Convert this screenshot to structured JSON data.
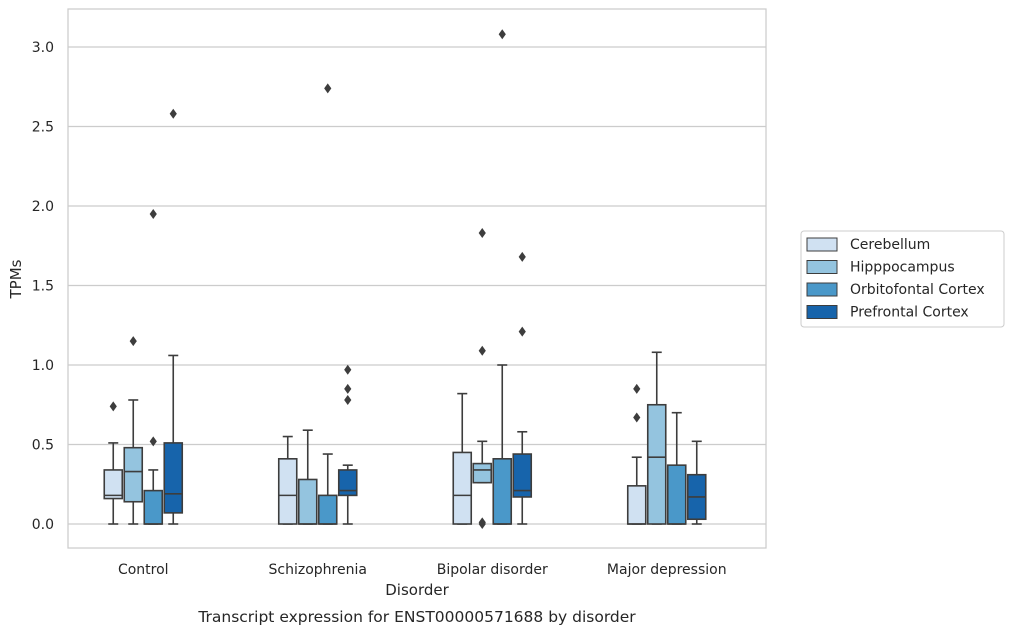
{
  "chart_data": {
    "type": "box",
    "xlabel": "Disorder",
    "ylabel": "TPMs",
    "caption": "Transcript expression for ENST00000571688 by disorder",
    "ylim": [
      -0.15,
      3.24
    ],
    "yticks": [
      0.0,
      0.5,
      1.0,
      1.5,
      2.0,
      2.5,
      3.0
    ],
    "ytick_labels": [
      "0.0",
      "0.5",
      "1.0",
      "1.5",
      "2.0",
      "2.5",
      "3.0"
    ],
    "grid": "horizontal",
    "legend_position": "right",
    "categories": [
      "Control",
      "Schizophrenia",
      "Bipolar disorder",
      "Major depression"
    ],
    "series": [
      {
        "name": "Cerebellum",
        "color": "#d0e1f2",
        "boxes": [
          {
            "whisker_low": 0.0,
            "q1": 0.16,
            "median": 0.18,
            "q3": 0.34,
            "whisker_high": 0.51,
            "outliers": [
              0.74
            ]
          },
          {
            "whisker_low": 0.0,
            "q1": 0.0,
            "median": 0.18,
            "q3": 0.41,
            "whisker_high": 0.55,
            "outliers": []
          },
          {
            "whisker_low": 0.0,
            "q1": 0.0,
            "median": 0.18,
            "q3": 0.45,
            "whisker_high": 0.82,
            "outliers": []
          },
          {
            "whisker_low": 0.0,
            "q1": 0.0,
            "median": 0.0,
            "q3": 0.24,
            "whisker_high": 0.42,
            "outliers": [
              0.67,
              0.85
            ]
          }
        ]
      },
      {
        "name": "Hipppocampus",
        "color": "#94c4df",
        "boxes": [
          {
            "whisker_low": 0.0,
            "q1": 0.14,
            "median": 0.33,
            "q3": 0.48,
            "whisker_high": 0.78,
            "outliers": [
              1.15
            ]
          },
          {
            "whisker_low": 0.0,
            "q1": 0.0,
            "median": 0.0,
            "q3": 0.28,
            "whisker_high": 0.59,
            "outliers": []
          },
          {
            "whisker_low": 0.26,
            "q1": 0.26,
            "median": 0.34,
            "q3": 0.38,
            "whisker_high": 0.52,
            "outliers": [
              0.0,
              0.01,
              1.09,
              1.83
            ]
          },
          {
            "whisker_low": 0.0,
            "q1": 0.0,
            "median": 0.42,
            "q3": 0.75,
            "whisker_high": 1.08,
            "outliers": []
          }
        ]
      },
      {
        "name": "Orbitofontal Cortex",
        "color": "#4a98c9",
        "boxes": [
          {
            "whisker_low": 0.0,
            "q1": 0.0,
            "median": 0.0,
            "q3": 0.21,
            "whisker_high": 0.34,
            "outliers": [
              0.52,
              1.95
            ]
          },
          {
            "whisker_low": 0.0,
            "q1": 0.0,
            "median": 0.0,
            "q3": 0.18,
            "whisker_high": 0.44,
            "outliers": [
              2.74
            ]
          },
          {
            "whisker_low": 0.0,
            "q1": 0.0,
            "median": 0.0,
            "q3": 0.41,
            "whisker_high": 1.0,
            "outliers": [
              3.08
            ]
          },
          {
            "whisker_low": 0.0,
            "q1": 0.0,
            "median": 0.0,
            "q3": 0.37,
            "whisker_high": 0.7,
            "outliers": []
          }
        ]
      },
      {
        "name": "Prefrontal Cortex",
        "color": "#1764ab",
        "boxes": [
          {
            "whisker_low": 0.0,
            "q1": 0.07,
            "median": 0.19,
            "q3": 0.51,
            "whisker_high": 1.06,
            "outliers": [
              2.58
            ]
          },
          {
            "whisker_low": 0.0,
            "q1": 0.18,
            "median": 0.21,
            "q3": 0.34,
            "whisker_high": 0.37,
            "outliers": [
              0.78,
              0.85,
              0.97
            ]
          },
          {
            "whisker_low": 0.0,
            "q1": 0.17,
            "median": 0.21,
            "q3": 0.44,
            "whisker_high": 0.58,
            "outliers": [
              1.21,
              1.68
            ]
          },
          {
            "whisker_low": 0.0,
            "q1": 0.03,
            "median": 0.17,
            "q3": 0.31,
            "whisker_high": 0.52,
            "outliers": []
          }
        ]
      }
    ]
  }
}
